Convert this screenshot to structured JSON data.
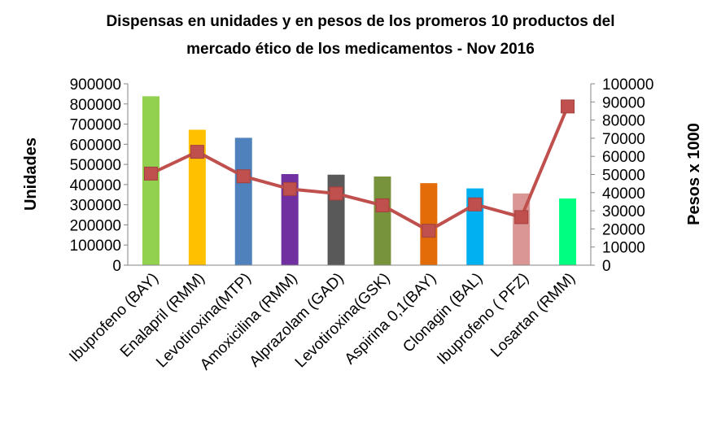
{
  "chart_data": {
    "type": "bar",
    "title_lines": [
      "Dispensas en unidades  y en pesos de los promeros 10 productos del",
      "mercado ético de los medicamentos - Nov 2016"
    ],
    "xlabel": "",
    "ylabel": "Unidades",
    "y2label": "Pesos x 1000",
    "ylim": [
      0,
      900000
    ],
    "y2lim": [
      0,
      100000
    ],
    "yticks": [
      "0",
      "100000",
      "200000",
      "300000",
      "400000",
      "500000",
      "600000",
      "700000",
      "800000",
      "900000"
    ],
    "y2ticks": [
      "0",
      "10000",
      "20000",
      "30000",
      "40000",
      "50000",
      "60000",
      "70000",
      "80000",
      "90000",
      "100000"
    ],
    "grid": false,
    "legend": "none",
    "categories": [
      "Ibuprofeno (BAY)",
      "Enalapril (RMM)",
      "Levotiroxina(MTP)",
      "Amoxicilina (RMM)",
      "Alprazolam (GAD)",
      "Levotiroxina(GSK)",
      "Aspirina 0,1(BAY)",
      "Clonagin (BAL)",
      "Ibuprofeno ( PFZ)",
      "Losartan (RMM)"
    ],
    "series": [
      {
        "axis": "left",
        "kind": "bar",
        "values": [
          838000,
          672000,
          632000,
          452000,
          449000,
          440000,
          407000,
          381000,
          356000,
          331000
        ],
        "colors": [
          "#92D050",
          "#FFC000",
          "#4F81BD",
          "#7030A0",
          "#595959",
          "#77933C",
          "#E36C09",
          "#00B0F0",
          "#D99694",
          "#00FF80"
        ]
      },
      {
        "axis": "right",
        "kind": "line",
        "values": [
          50500,
          62500,
          49000,
          42000,
          39500,
          33000,
          19000,
          33500,
          26500,
          87500
        ],
        "color": "#C0504D"
      }
    ]
  }
}
